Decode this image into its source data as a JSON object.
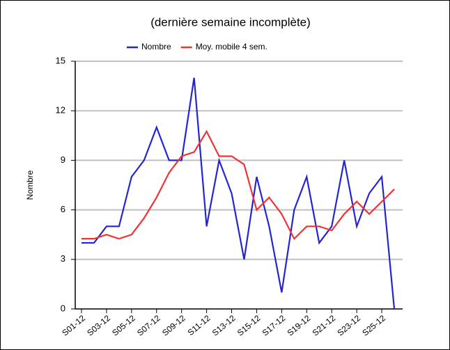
{
  "chart_data": {
    "type": "line",
    "subtitle": "(dernière semaine incomplète)",
    "y_label": "Nombre",
    "categories": [
      "S01-12",
      null,
      "S03-12",
      null,
      "S05-12",
      null,
      "S07-12",
      null,
      "S09-12",
      null,
      "S11-12",
      null,
      "S13-12",
      null,
      "S15-12",
      null,
      "S17-12",
      null,
      "S19-12",
      null,
      "S21-12",
      null,
      "S23-12",
      null,
      "S25-12",
      null
    ],
    "series": [
      {
        "name": "Nombre",
        "color": "#2323d8",
        "values": [
          4,
          4,
          5,
          5,
          8,
          9,
          11,
          9,
          9,
          14,
          5,
          9,
          7,
          3,
          8,
          5,
          1,
          6,
          8,
          4,
          5,
          9,
          5,
          7,
          8,
          0
        ]
      },
      {
        "name": "Moy. mobile 4 sem.",
        "color": "#ee3333",
        "values": [
          4.25,
          4.25,
          4.5,
          4.25,
          4.5,
          5.5,
          6.75,
          8.25,
          9.25,
          9.5,
          10.75,
          9.25,
          9.25,
          8.75,
          6,
          6.75,
          5.75,
          4.25,
          5,
          5,
          4.75,
          5.75,
          6.5,
          5.75,
          6.5,
          7.25
        ]
      }
    ],
    "ylim": [
      0,
      15
    ],
    "yticks": [
      0,
      3,
      6,
      9,
      12,
      15
    ],
    "grid": true
  }
}
